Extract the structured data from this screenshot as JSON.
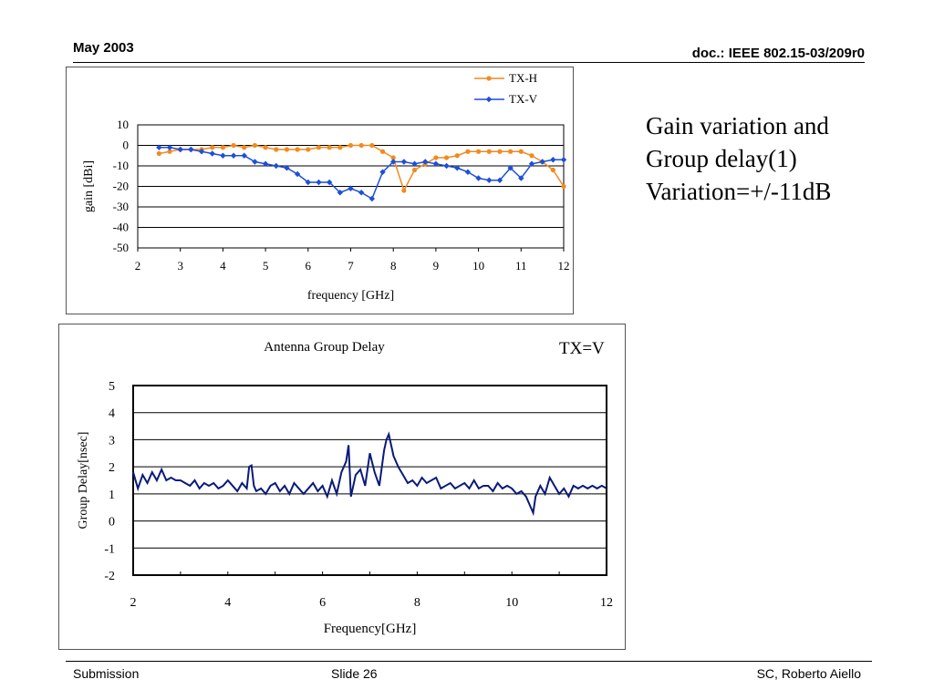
{
  "header": {
    "date": "May 2003",
    "doc_id": "doc.: IEEE 802.15-03/209r0"
  },
  "footer": {
    "left": "Submission",
    "center": "Slide 26",
    "right": "SC, Roberto Aiello"
  },
  "side_text": {
    "line1": "Gain variation and",
    "line2": "Group delay(1)",
    "line3": "Variation=+/-11dB"
  },
  "chart_data": [
    {
      "type": "line",
      "title": "",
      "xlabel": "frequency [GHz]",
      "ylabel": "gain [dBi]",
      "xlim": [
        2,
        12
      ],
      "ylim": [
        -50,
        10
      ],
      "xticks": [
        2,
        3,
        4,
        5,
        6,
        7,
        8,
        9,
        10,
        11,
        12
      ],
      "yticks": [
        10,
        0,
        -10,
        -20,
        -30,
        -40,
        -50
      ],
      "grid": true,
      "legend_position": "top-right",
      "series": [
        {
          "name": "TX-H",
          "color": "#f28a1e",
          "x": [
            2.5,
            2.75,
            3.0,
            3.25,
            3.5,
            3.75,
            4.0,
            4.25,
            4.5,
            4.75,
            5.0,
            5.25,
            5.5,
            5.75,
            6.0,
            6.25,
            6.5,
            6.75,
            7.0,
            7.25,
            7.5,
            7.75,
            8.0,
            8.25,
            8.5,
            8.75,
            9.0,
            9.25,
            9.5,
            9.75,
            10.0,
            10.25,
            10.5,
            10.75,
            11.0,
            11.25,
            11.5,
            11.75,
            12.0
          ],
          "y": [
            -4,
            -3,
            -2,
            -2,
            -2,
            -1,
            -1,
            0,
            -1,
            0,
            -1,
            -2,
            -2,
            -2,
            -2,
            -1,
            -1,
            -1,
            0,
            0,
            0,
            -3,
            -6,
            -22,
            -12,
            -9,
            -6,
            -6,
            -5,
            -3,
            -3,
            -3,
            -3,
            -3,
            -3,
            -5,
            -8,
            -12,
            -20
          ],
          "marker": "circle"
        },
        {
          "name": "TX-V",
          "color": "#1f4fd8",
          "x": [
            2.5,
            2.75,
            3.0,
            3.25,
            3.5,
            3.75,
            4.0,
            4.25,
            4.5,
            4.75,
            5.0,
            5.25,
            5.5,
            5.75,
            6.0,
            6.25,
            6.5,
            6.75,
            7.0,
            7.25,
            7.5,
            7.75,
            8.0,
            8.25,
            8.5,
            8.75,
            9.0,
            9.25,
            9.5,
            9.75,
            10.0,
            10.25,
            10.5,
            10.75,
            11.0,
            11.25,
            11.5,
            11.75,
            12.0
          ],
          "y": [
            -1,
            -1,
            -2,
            -2,
            -3,
            -4,
            -5,
            -5,
            -5,
            -8,
            -9,
            -10,
            -11,
            -14,
            -18,
            -18,
            -18,
            -23,
            -21,
            -23,
            -26,
            -13,
            -8,
            -8,
            -9,
            -8,
            -9,
            -10,
            -11,
            -13,
            -16,
            -17,
            -17,
            -11,
            -16,
            -9,
            -8,
            -7,
            -7
          ],
          "marker": "diamond"
        }
      ]
    },
    {
      "type": "line",
      "title": "Antenna Group Delay",
      "annotation": "TX=V",
      "xlabel": "Frequency[GHz]",
      "ylabel": "Group Delay[nsec]",
      "xlim": [
        2,
        12
      ],
      "ylim": [
        -2,
        5
      ],
      "xticks": [
        2,
        4,
        6,
        8,
        10,
        12
      ],
      "yticks": [
        5,
        4,
        3,
        2,
        1,
        0,
        -1,
        -2
      ],
      "grid": true,
      "series": [
        {
          "color": "#0a1a7a",
          "x": [
            2.0,
            2.1,
            2.2,
            2.3,
            2.4,
            2.5,
            2.6,
            2.7,
            2.8,
            2.9,
            3.0,
            3.1,
            3.2,
            3.3,
            3.4,
            3.5,
            3.6,
            3.7,
            3.8,
            3.9,
            4.0,
            4.1,
            4.2,
            4.3,
            4.4,
            4.45,
            4.5,
            4.55,
            4.6,
            4.7,
            4.8,
            4.9,
            5.0,
            5.1,
            5.2,
            5.3,
            5.4,
            5.5,
            5.6,
            5.7,
            5.8,
            5.9,
            6.0,
            6.1,
            6.2,
            6.3,
            6.4,
            6.5,
            6.55,
            6.6,
            6.7,
            6.8,
            6.9,
            7.0,
            7.1,
            7.2,
            7.3,
            7.35,
            7.4,
            7.5,
            7.6,
            7.7,
            7.8,
            7.9,
            8.0,
            8.1,
            8.2,
            8.3,
            8.4,
            8.5,
            8.6,
            8.7,
            8.8,
            8.9,
            9.0,
            9.1,
            9.2,
            9.3,
            9.4,
            9.5,
            9.6,
            9.7,
            9.8,
            9.9,
            10.0,
            10.1,
            10.2,
            10.3,
            10.4,
            10.45,
            10.5,
            10.6,
            10.7,
            10.8,
            10.9,
            11.0,
            11.1,
            11.2,
            11.3,
            11.4,
            11.5,
            11.6,
            11.7,
            11.8,
            11.9,
            12.0
          ],
          "y": [
            1.8,
            1.2,
            1.7,
            1.4,
            1.8,
            1.5,
            1.9,
            1.5,
            1.6,
            1.5,
            1.5,
            1.4,
            1.3,
            1.5,
            1.2,
            1.4,
            1.3,
            1.4,
            1.2,
            1.3,
            1.5,
            1.3,
            1.1,
            1.4,
            1.2,
            2.0,
            2.05,
            1.3,
            1.1,
            1.2,
            1.0,
            1.3,
            1.4,
            1.1,
            1.3,
            1.0,
            1.4,
            1.2,
            1.0,
            1.2,
            1.4,
            1.1,
            1.3,
            0.9,
            1.5,
            1.0,
            1.8,
            2.2,
            2.8,
            0.9,
            1.7,
            1.9,
            1.3,
            2.5,
            1.8,
            1.3,
            2.6,
            3.0,
            3.2,
            2.4,
            2.0,
            1.7,
            1.4,
            1.5,
            1.3,
            1.6,
            1.4,
            1.5,
            1.6,
            1.2,
            1.3,
            1.4,
            1.2,
            1.3,
            1.4,
            1.2,
            1.5,
            1.2,
            1.3,
            1.3,
            1.1,
            1.4,
            1.2,
            1.3,
            1.2,
            1.0,
            1.1,
            0.9,
            0.5,
            0.3,
            0.9,
            1.3,
            1.0,
            1.6,
            1.3,
            1.0,
            1.2,
            0.9,
            1.3,
            1.2,
            1.3,
            1.2,
            1.3,
            1.2,
            1.3,
            1.2
          ]
        }
      ]
    }
  ]
}
